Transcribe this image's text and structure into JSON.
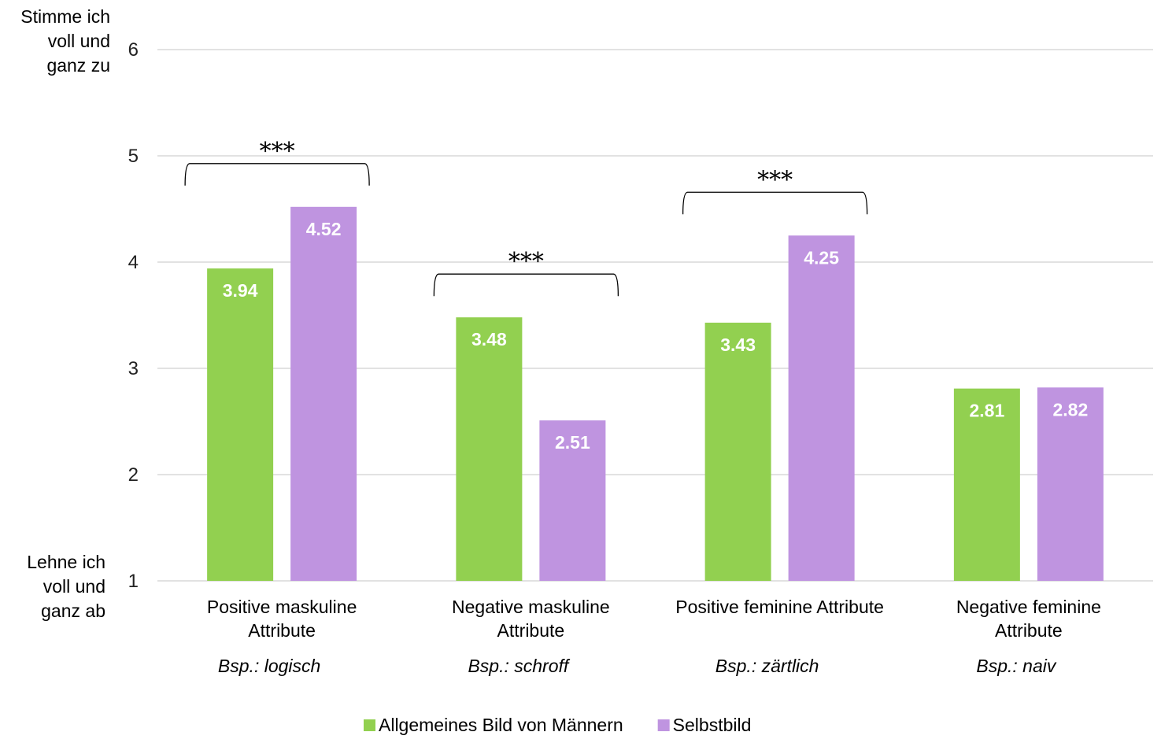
{
  "chart_data": {
    "type": "bar",
    "categories": [
      {
        "line1": "Positive maskuline",
        "line2": "Attribute",
        "example": "Bsp.: logisch"
      },
      {
        "line1": "Negative maskuline",
        "line2": "Attribute",
        "example": "Bsp.: schroff"
      },
      {
        "line1": "Positive feminine Attribute",
        "line2": "",
        "example": "Bsp.: zärtlich"
      },
      {
        "line1": "Negative feminine",
        "line2": "Attribute",
        "example": "Bsp.: naiv"
      }
    ],
    "series": [
      {
        "name": "Allgemeines Bild von Männern",
        "color": "#92d050",
        "values": [
          3.94,
          3.48,
          3.43,
          2.81
        ],
        "labels": [
          "3.94",
          "3.48",
          "3.43",
          "2.81"
        ]
      },
      {
        "name": "Selbstbild",
        "color": "#bf94e0",
        "values": [
          4.52,
          2.51,
          4.25,
          2.82
        ],
        "labels": [
          "4.52",
          "2.51",
          "4.25",
          "2.82"
        ]
      }
    ],
    "ylim": [
      1,
      6
    ],
    "yticks": [
      "1",
      "2",
      "3",
      "4",
      "5",
      "6"
    ],
    "ylabel_top": [
      "Stimme ich",
      "voll und",
      "ganz zu"
    ],
    "ylabel_bottom": [
      "Lehne ich",
      "voll und",
      "ganz ab"
    ],
    "significance": [
      {
        "category_index": 0,
        "label": "***"
      },
      {
        "category_index": 1,
        "label": "***"
      },
      {
        "category_index": 2,
        "label": "***"
      }
    ],
    "grid": true,
    "legend_position": "bottom-center",
    "gridline_color": "#d9d9d9"
  }
}
